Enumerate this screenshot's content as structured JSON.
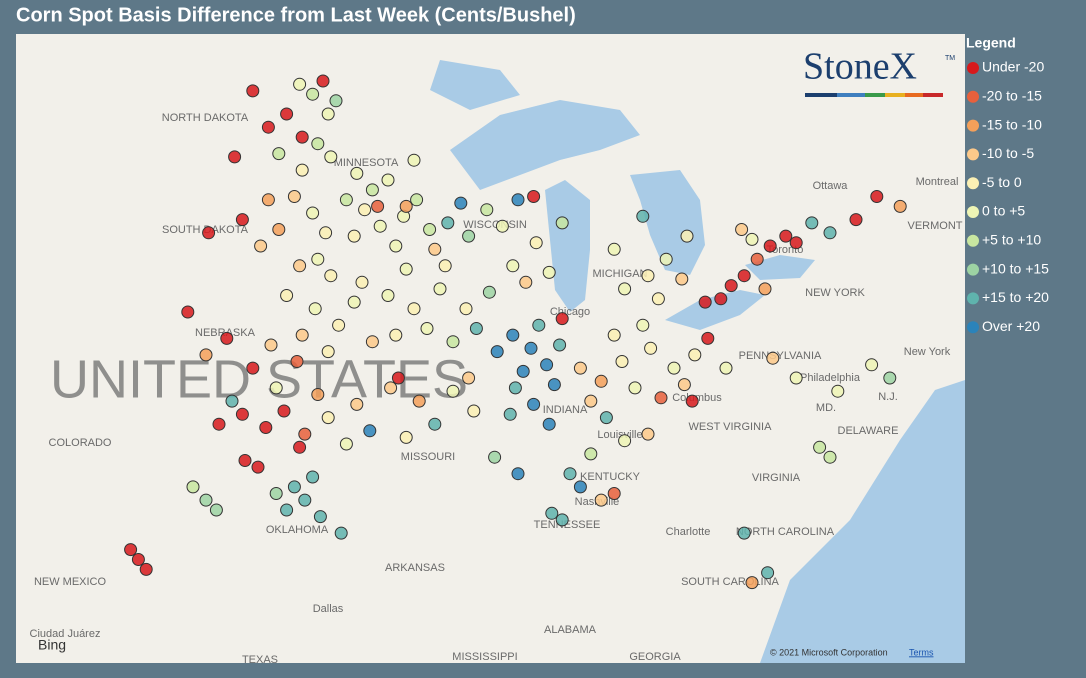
{
  "map": {
    "title": "Corn Spot Basis Difference from Last Week (Cents/Bushel)",
    "legend_title": "Legend",
    "logo": "StoneX",
    "logo_tm": "TM",
    "bing": "Bing",
    "copyright": "© 2021 Microsoft Corporation",
    "terms": "Terms",
    "country_label": "UNITED STATES",
    "classes": [
      {
        "name": "Under -20",
        "color": "#d7191c"
      },
      {
        "name": "-20 to -15",
        "color": "#e8603c"
      },
      {
        "name": "-15 to -10",
        "color": "#f4a05a"
      },
      {
        "name": "-10 to -5",
        "color": "#fdc98a"
      },
      {
        "name": "-5 to 0",
        "color": "#fbf0b4"
      },
      {
        "name": "0 to +5",
        "color": "#eef5b5"
      },
      {
        "name": "+5 to +10",
        "color": "#c8e6a0"
      },
      {
        "name": "+10 to +15",
        "color": "#9dd3a3"
      },
      {
        "name": "+15 to +20",
        "color": "#5fb3ad"
      },
      {
        "name": "Over +20",
        "color": "#2b83ba"
      }
    ],
    "places": [
      "NORTH DAKOTA",
      "MINNESOTA",
      "SOUTH DAKOTA",
      "WISCONSIN",
      "MICHIGAN",
      "Chicago",
      "NEBRASKA",
      "INDIANA",
      "Columbus",
      "COLORADO",
      "MISSOURI",
      "KENTUCKY",
      "Louisville",
      "Nashville",
      "TENNESSEE",
      "WEST VIRGINIA",
      "VIRGINIA",
      "PENNSYLVANIA",
      "Philadelphia",
      "MD.",
      "DELAWARE",
      "N.J.",
      "New York",
      "NEW YORK",
      "VERMONT",
      "Montreal",
      "Ottawa",
      "Toronto",
      "OKLAHOMA",
      "ARKANSAS",
      "NEW MEXICO",
      "Dallas",
      "Ciudad Juárez",
      "ALABAMA",
      "MISSISSIPPI",
      "GEORGIA",
      "TEXAS",
      "Charlotte",
      "NORTH CAROLINA",
      "SOUTH CAROLINA"
    ],
    "points": [
      [
        -99.8,
        48.6,
        0
      ],
      [
        -98.5,
        47.9,
        0
      ],
      [
        -97.9,
        47.2,
        0
      ],
      [
        -99.2,
        47.5,
        0
      ],
      [
        -100.5,
        46.6,
        0
      ],
      [
        -97.1,
        48.9,
        0
      ],
      [
        -97.5,
        48.5,
        6
      ],
      [
        -98.0,
        48.8,
        5
      ],
      [
        -96.9,
        47.9,
        5
      ],
      [
        -97.3,
        47.0,
        6
      ],
      [
        -96.8,
        46.6,
        5
      ],
      [
        -97.9,
        46.2,
        4
      ],
      [
        -98.8,
        46.7,
        6
      ],
      [
        -96.6,
        48.3,
        7
      ],
      [
        -95.8,
        46.1,
        5
      ],
      [
        -95.2,
        45.6,
        6
      ],
      [
        -94.6,
        45.9,
        5
      ],
      [
        -95.5,
        45.0,
        4
      ],
      [
        -94.0,
        44.8,
        5
      ],
      [
        -93.5,
        45.3,
        6
      ],
      [
        -94.9,
        44.5,
        5
      ],
      [
        -93.0,
        44.4,
        6
      ],
      [
        -95.9,
        44.2,
        4
      ],
      [
        -94.3,
        43.9,
        5
      ],
      [
        -92.8,
        43.8,
        3
      ],
      [
        -93.9,
        45.1,
        2
      ],
      [
        -95.0,
        45.1,
        1
      ],
      [
        -96.2,
        45.3,
        6
      ],
      [
        -92.3,
        44.6,
        8
      ],
      [
        -91.8,
        45.2,
        9
      ],
      [
        -91.5,
        44.2,
        7
      ],
      [
        -90.8,
        45.0,
        6
      ],
      [
        -93.6,
        46.5,
        5
      ],
      [
        -98.2,
        45.4,
        3
      ],
      [
        -97.5,
        44.9,
        5
      ],
      [
        -98.8,
        44.4,
        2
      ],
      [
        -99.5,
        43.9,
        3
      ],
      [
        -97.0,
        44.3,
        4
      ],
      [
        -97.3,
        43.5,
        5
      ],
      [
        -96.8,
        43.0,
        4
      ],
      [
        -98.0,
        43.3,
        3
      ],
      [
        -100.2,
        44.7,
        0
      ],
      [
        -101.5,
        44.3,
        0
      ],
      [
        -99.2,
        45.3,
        2
      ],
      [
        -98.5,
        42.4,
        4
      ],
      [
        -97.4,
        42.0,
        5
      ],
      [
        -96.5,
        41.5,
        4
      ],
      [
        -97.9,
        41.2,
        3
      ],
      [
        -99.1,
        40.9,
        3
      ],
      [
        -96.9,
        40.7,
        4
      ],
      [
        -98.1,
        40.4,
        1
      ],
      [
        -100.8,
        41.1,
        0
      ],
      [
        -101.6,
        40.6,
        2
      ],
      [
        -99.8,
        40.2,
        0
      ],
      [
        -102.3,
        41.9,
        0
      ],
      [
        -95.6,
        42.8,
        4
      ],
      [
        -94.6,
        42.4,
        5
      ],
      [
        -93.6,
        42.0,
        4
      ],
      [
        -92.6,
        42.6,
        5
      ],
      [
        -91.6,
        42.0,
        4
      ],
      [
        -93.1,
        41.4,
        5
      ],
      [
        -94.3,
        41.2,
        4
      ],
      [
        -95.2,
        41.0,
        3
      ],
      [
        -91.2,
        41.4,
        8
      ],
      [
        -92.1,
        41.0,
        6
      ],
      [
        -90.7,
        42.5,
        7
      ],
      [
        -93.9,
        43.2,
        5
      ],
      [
        -92.4,
        43.3,
        4
      ],
      [
        -95.9,
        42.2,
        5
      ],
      [
        -100.2,
        38.8,
        0
      ],
      [
        -99.3,
        38.4,
        0
      ],
      [
        -98.6,
        38.9,
        0
      ],
      [
        -97.8,
        38.2,
        1
      ],
      [
        -101.1,
        38.5,
        0
      ],
      [
        -98.0,
        37.8,
        0
      ],
      [
        -96.9,
        38.7,
        4
      ],
      [
        -95.8,
        39.1,
        3
      ],
      [
        -96.2,
        37.9,
        5
      ],
      [
        -97.3,
        39.4,
        2
      ],
      [
        -98.9,
        39.6,
        5
      ],
      [
        -100.6,
        39.2,
        8
      ],
      [
        -95.3,
        38.3,
        9
      ],
      [
        -98.2,
        36.6,
        8
      ],
      [
        -97.8,
        36.2,
        8
      ],
      [
        -98.5,
        35.9,
        8
      ],
      [
        -97.5,
        36.9,
        8
      ],
      [
        -98.9,
        36.4,
        7
      ],
      [
        -97.2,
        35.7,
        8
      ],
      [
        -101.6,
        36.2,
        7
      ],
      [
        -101.2,
        35.9,
        7
      ],
      [
        -102.1,
        36.6,
        6
      ],
      [
        -96.4,
        35.2,
        8
      ],
      [
        -99.6,
        37.2,
        0
      ],
      [
        -100.1,
        37.4,
        0
      ],
      [
        -104.2,
        34.4,
        0
      ],
      [
        -103.9,
        34.1,
        0
      ],
      [
        -104.5,
        34.7,
        0
      ],
      [
        -94.5,
        39.6,
        3
      ],
      [
        -93.4,
        39.2,
        2
      ],
      [
        -92.1,
        39.5,
        5
      ],
      [
        -91.3,
        38.9,
        4
      ],
      [
        -92.8,
        38.5,
        8
      ],
      [
        -93.9,
        38.1,
        4
      ],
      [
        -90.5,
        37.5,
        7
      ],
      [
        -89.6,
        37.0,
        9
      ],
      [
        -91.5,
        39.9,
        3
      ],
      [
        -94.2,
        39.9,
        0
      ],
      [
        -89.8,
        41.2,
        9
      ],
      [
        -89.1,
        40.8,
        9
      ],
      [
        -88.5,
        40.3,
        9
      ],
      [
        -89.4,
        40.1,
        9
      ],
      [
        -88.2,
        39.7,
        9
      ],
      [
        -89.7,
        39.6,
        8
      ],
      [
        -88.8,
        41.5,
        8
      ],
      [
        -90.4,
        40.7,
        9
      ],
      [
        -88.0,
        40.9,
        8
      ],
      [
        -89.0,
        39.1,
        9
      ],
      [
        -88.4,
        38.5,
        9
      ],
      [
        -89.9,
        38.8,
        8
      ],
      [
        -87.9,
        41.7,
        0
      ],
      [
        -87.2,
        40.2,
        3
      ],
      [
        -86.4,
        39.8,
        2
      ],
      [
        -85.6,
        40.4,
        4
      ],
      [
        -86.8,
        39.2,
        3
      ],
      [
        -85.1,
        39.6,
        5
      ],
      [
        -84.5,
        40.8,
        4
      ],
      [
        -83.6,
        40.2,
        5
      ],
      [
        -82.8,
        40.6,
        4
      ],
      [
        -83.2,
        39.7,
        3
      ],
      [
        -84.1,
        39.3,
        1
      ],
      [
        -85.9,
        41.2,
        4
      ],
      [
        -84.8,
        41.5,
        5
      ],
      [
        -82.3,
        41.1,
        0
      ],
      [
        -81.6,
        40.2,
        5
      ],
      [
        -82.9,
        39.2,
        0
      ],
      [
        -86.2,
        38.7,
        8
      ],
      [
        -85.5,
        42.6,
        5
      ],
      [
        -84.6,
        43.0,
        4
      ],
      [
        -83.9,
        43.5,
        5
      ],
      [
        -84.2,
        42.3,
        4
      ],
      [
        -83.3,
        42.9,
        3
      ],
      [
        -85.9,
        43.8,
        5
      ],
      [
        -83.1,
        44.2,
        4
      ],
      [
        -84.8,
        44.8,
        8
      ],
      [
        -89.8,
        43.3,
        5
      ],
      [
        -88.9,
        44.0,
        4
      ],
      [
        -90.2,
        44.5,
        5
      ],
      [
        -88.4,
        43.1,
        5
      ],
      [
        -89.3,
        42.8,
        3
      ],
      [
        -87.9,
        44.6,
        6
      ],
      [
        -89.6,
        45.3,
        9
      ],
      [
        -89.0,
        45.4,
        0
      ],
      [
        -86.8,
        37.6,
        6
      ],
      [
        -87.6,
        37.0,
        8
      ],
      [
        -87.2,
        36.6,
        9
      ],
      [
        -86.4,
        36.2,
        3
      ],
      [
        -85.9,
        36.4,
        1
      ],
      [
        -88.3,
        35.8,
        8
      ],
      [
        -87.9,
        35.6,
        8
      ],
      [
        -84.6,
        38.2,
        3
      ],
      [
        -85.5,
        38.0,
        5
      ],
      [
        -80.9,
        43.0,
        0
      ],
      [
        -80.4,
        43.5,
        1
      ],
      [
        -81.4,
        42.7,
        0
      ],
      [
        -79.9,
        43.9,
        0
      ],
      [
        -79.3,
        44.2,
        0
      ],
      [
        -80.1,
        42.6,
        2
      ],
      [
        -81.8,
        42.3,
        0
      ],
      [
        -82.4,
        42.2,
        0
      ],
      [
        -78.9,
        44.0,
        0
      ],
      [
        -78.3,
        44.6,
        8
      ],
      [
        -77.6,
        44.3,
        8
      ],
      [
        -75.8,
        45.4,
        0
      ],
      [
        -74.9,
        45.1,
        2
      ],
      [
        -76.6,
        44.7,
        0
      ],
      [
        -81.0,
        44.4,
        3
      ],
      [
        -80.6,
        44.1,
        5
      ],
      [
        -75.3,
        39.9,
        7
      ],
      [
        -78.0,
        37.8,
        6
      ],
      [
        -77.6,
        37.5,
        6
      ],
      [
        -80.9,
        35.2,
        8
      ],
      [
        -80.0,
        34.0,
        8
      ],
      [
        -80.6,
        33.7,
        2
      ],
      [
        -76.0,
        40.3,
        5
      ],
      [
        -77.3,
        39.5,
        5
      ],
      [
        -78.9,
        39.9,
        5
      ],
      [
        -79.8,
        40.5,
        3
      ]
    ]
  }
}
